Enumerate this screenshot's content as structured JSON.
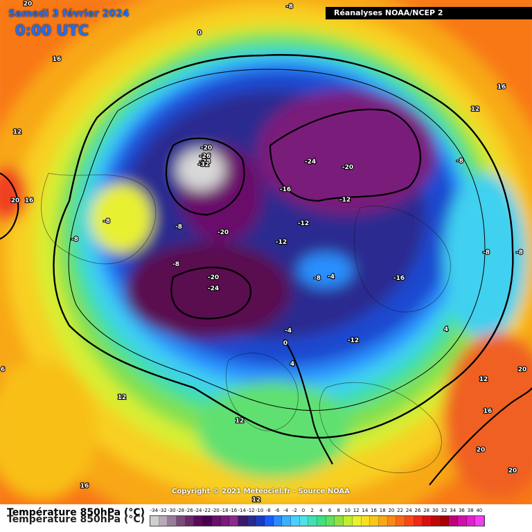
{
  "header": {
    "date": "Samedi 3 février 2024",
    "time": "0:00 UTC",
    "source": "Réanalyses NOAA/NCEP 2"
  },
  "copyright": "Copyright © 2021 Meteociel.fr - Source NOAA",
  "legend": {
    "title": "Température 850hPa (°C)",
    "ticks": [
      "-34",
      "-32",
      "-30",
      "-28",
      "-26",
      "-24",
      "-22",
      "-20",
      "-18",
      "-16",
      "-14",
      "-12",
      "-10",
      "-8",
      "-6",
      "-4",
      "-2",
      "0",
      "2",
      "4",
      "6",
      "8",
      "10",
      "12",
      "14",
      "16",
      "18",
      "20",
      "22",
      "24",
      "26",
      "28",
      "30",
      "32",
      "34",
      "36",
      "38",
      "40"
    ],
    "colors": [
      "#cfcfcf",
      "#b8a8b8",
      "#9a7a9a",
      "#7a4a7a",
      "#6a2a6a",
      "#5a0a5a",
      "#4a0050",
      "#6a106a",
      "#7a1a7a",
      "#8a2a8a",
      "#3a1a6a",
      "#2a2a90",
      "#1a3ac0",
      "#1a5aff",
      "#2a8aff",
      "#3ab0ff",
      "#4ad0ff",
      "#50e0e8",
      "#40e0b0",
      "#40e080",
      "#60e060",
      "#90e040",
      "#c0ee30",
      "#e8f030",
      "#f8e020",
      "#f8c818",
      "#f8a818",
      "#f88818",
      "#f86818",
      "#f84818",
      "#f02818",
      "#d81010",
      "#c00808",
      "#a80000",
      "#c0007a",
      "#d010a8",
      "#e020d0",
      "#f040f0"
    ]
  },
  "map_labels": [
    {
      "text": "20",
      "tag": "a"
    },
    {
      "text": "-8",
      "tag": "b"
    },
    {
      "text": "0",
      "tag": "c"
    },
    {
      "text": "16",
      "tag": "d"
    },
    {
      "text": "16",
      "tag": "e"
    },
    {
      "text": "12",
      "tag": "f"
    },
    {
      "text": "12",
      "tag": "g"
    },
    {
      "text": "-20",
      "tag": "h"
    },
    {
      "text": "-26",
      "tag": "i"
    },
    {
      "text": "-28",
      "tag": "j"
    },
    {
      "text": "-32",
      "tag": "k"
    },
    {
      "text": "-24",
      "tag": "l"
    },
    {
      "text": "-20",
      "tag": "m"
    },
    {
      "text": "-8",
      "tag": "n"
    },
    {
      "text": "20",
      "tag": "o"
    },
    {
      "text": "16",
      "tag": "p"
    },
    {
      "text": "-16",
      "tag": "q"
    },
    {
      "text": "-12",
      "tag": "r"
    },
    {
      "text": "-8",
      "tag": "s"
    },
    {
      "text": "-8",
      "tag": "t"
    },
    {
      "text": "-8",
      "tag": "u"
    },
    {
      "text": "-12",
      "tag": "v"
    },
    {
      "text": "-12",
      "tag": "w"
    },
    {
      "text": "-20",
      "tag": "x"
    },
    {
      "text": "-8",
      "tag": "y"
    },
    {
      "text": "-8",
      "tag": "z"
    },
    {
      "text": "-20",
      "tag": "aa"
    },
    {
      "text": "-24",
      "tag": "ab"
    },
    {
      "text": "-8",
      "tag": "ac"
    },
    {
      "text": "-4",
      "tag": "ad"
    },
    {
      "text": "-16",
      "tag": "ae"
    },
    {
      "text": "-12",
      "tag": "af"
    },
    {
      "text": "-4",
      "tag": "ag"
    },
    {
      "text": "0",
      "tag": "ah"
    },
    {
      "text": "4",
      "tag": "ai"
    },
    {
      "text": "4",
      "tag": "aj"
    },
    {
      "text": "12",
      "tag": "ak"
    },
    {
      "text": "12",
      "tag": "al"
    },
    {
      "text": "16",
      "tag": "am"
    },
    {
      "text": "20",
      "tag": "an"
    },
    {
      "text": "20",
      "tag": "ao"
    },
    {
      "text": "12",
      "tag": "ap"
    },
    {
      "text": "16",
      "tag": "aq"
    },
    {
      "text": "6",
      "tag": "ar"
    },
    {
      "text": "12",
      "tag": "as"
    },
    {
      "text": "-8",
      "tag": "at"
    },
    {
      "text": "20",
      "tag": "au"
    }
  ]
}
